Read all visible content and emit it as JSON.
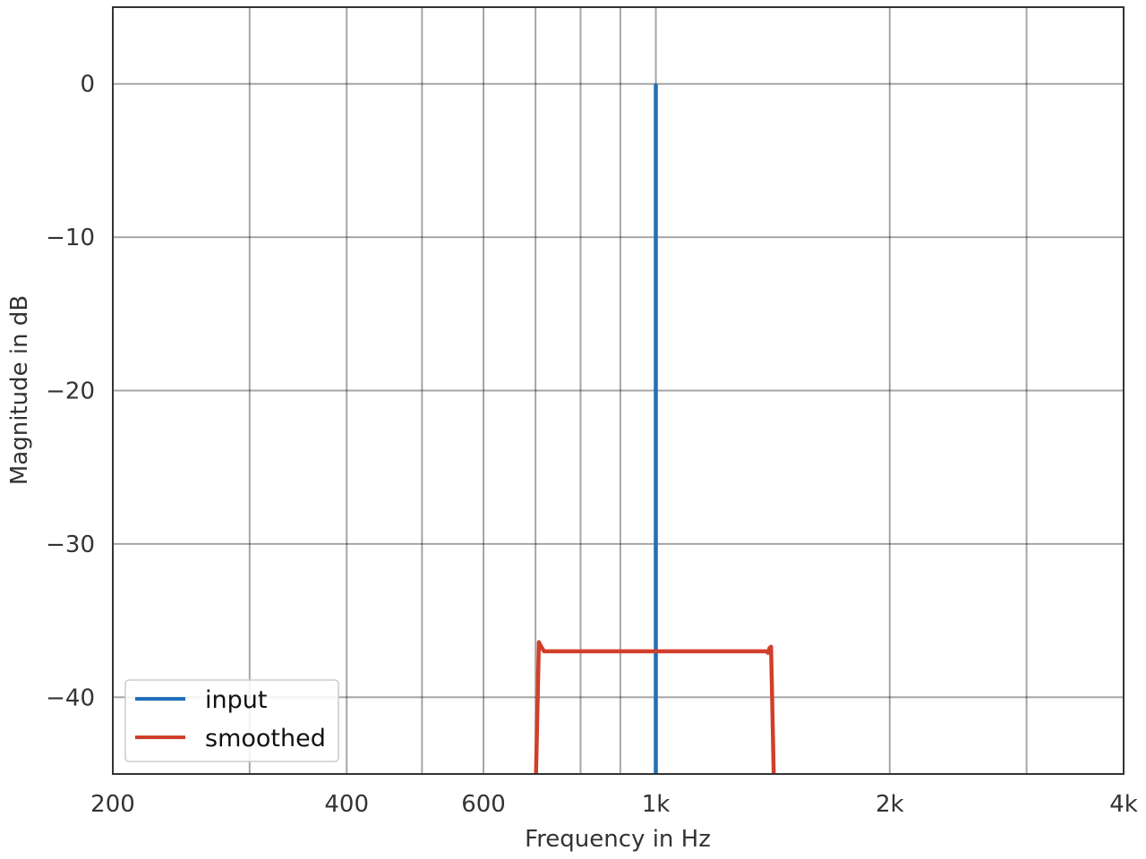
{
  "chart_data": {
    "type": "line",
    "xlabel": "Frequency in Hz",
    "ylabel": "Magnitude in dB",
    "xscale": "log",
    "xlim": [
      200,
      4000
    ],
    "ylim": [
      -45,
      5
    ],
    "grid": true,
    "legend_position": "lower-left",
    "x_ticks": [
      {
        "value": 200,
        "label": "200"
      },
      {
        "value": 400,
        "label": "400"
      },
      {
        "value": 600,
        "label": "600"
      },
      {
        "value": 1000,
        "label": "1k"
      },
      {
        "value": 2000,
        "label": "2k"
      },
      {
        "value": 4000,
        "label": "4k"
      }
    ],
    "x_minor_gridlines": [
      300,
      500,
      700,
      800,
      900,
      3000
    ],
    "y_ticks": [
      {
        "value": 0,
        "label": "0"
      },
      {
        "value": -10,
        "label": "−10"
      },
      {
        "value": -20,
        "label": "−20"
      },
      {
        "value": -30,
        "label": "−30"
      },
      {
        "value": -40,
        "label": "−40"
      }
    ],
    "series": [
      {
        "name": "input",
        "color": "#1f6fb8",
        "points": [
          [
            1000,
            -45
          ],
          [
            1000,
            0
          ]
        ]
      },
      {
        "name": "smoothed",
        "color": "#d13f2a",
        "points": [
          [
            701,
            -45
          ],
          [
            707,
            -36.4
          ],
          [
            712,
            -36.7
          ],
          [
            718,
            -37.0
          ],
          [
            730,
            -37.0
          ],
          [
            800,
            -37.0
          ],
          [
            900,
            -37.0
          ],
          [
            1000,
            -37.0
          ],
          [
            1100,
            -37.0
          ],
          [
            1200,
            -37.0
          ],
          [
            1350,
            -37.0
          ],
          [
            1385,
            -37.0
          ],
          [
            1395,
            -37.1
          ],
          [
            1400,
            -36.8
          ],
          [
            1407,
            -36.7
          ],
          [
            1418,
            -45
          ]
        ]
      }
    ]
  }
}
